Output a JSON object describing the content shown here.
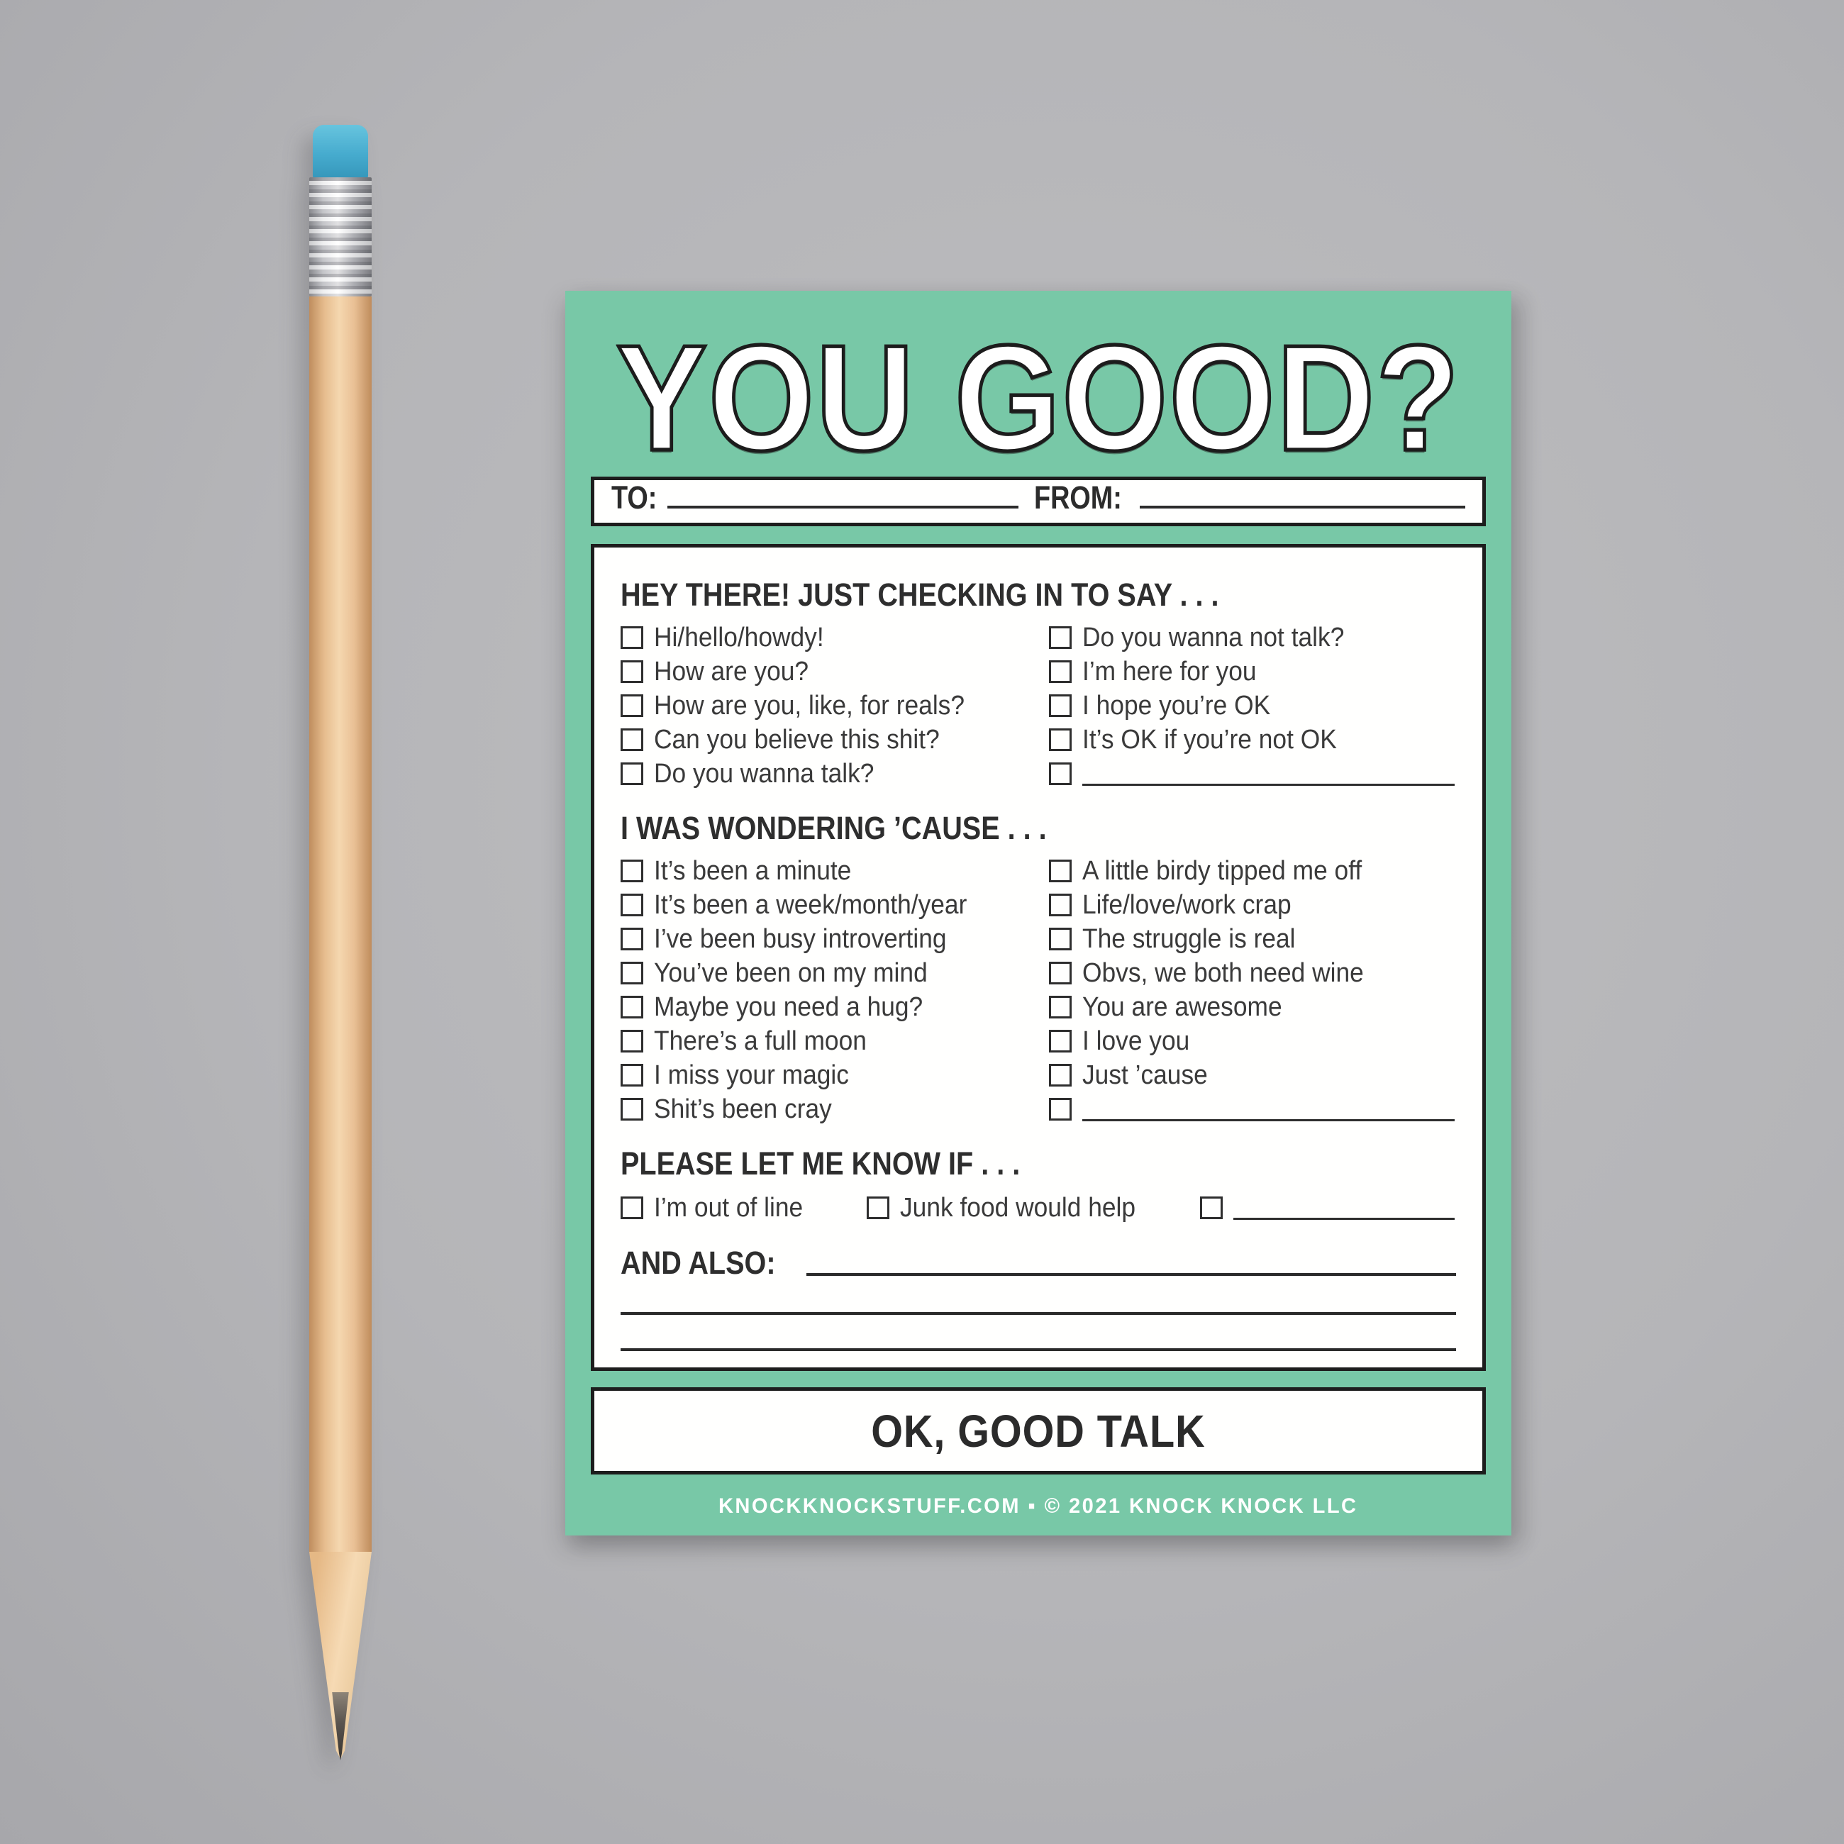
{
  "colors": {
    "background_gray": "#B5B5B8",
    "card_green": "#78C8A7",
    "paper_white": "#FFFFFE",
    "ink_black": "#1D1D1D",
    "text_gray": "#3A3A3A",
    "eraser_blue": "#46ABCE",
    "ferrule_silver": "#D9DADD",
    "pencil_wood": "#E6BC8D",
    "graphite": "#37332F"
  },
  "card": {
    "title": "YOU GOOD?",
    "to_label": "TO:",
    "from_label": "FROM:",
    "sections": [
      {
        "header": "HEY THERE! JUST CHECKING IN TO SAY . . .",
        "left": [
          "Hi/hello/howdy!",
          "How are you?",
          "How are you, like, for reals?",
          "Can you believe this shit?",
          "Do you wanna talk?"
        ],
        "right": [
          "Do you wanna not talk?",
          "I’m here for you",
          "I hope you’re OK",
          "It’s OK if you’re not OK"
        ]
      },
      {
        "header": "I WAS WONDERING ’CAUSE . . .",
        "left": [
          "It’s been a minute",
          "It’s been a week/month/year",
          "I’ve been busy introverting",
          "You’ve been on my mind",
          "Maybe you need a hug?",
          "There’s a full moon",
          "I miss your magic",
          "Shit’s been cray"
        ],
        "right": [
          "A little birdy tipped me off",
          "Life/love/work crap",
          "The struggle is real",
          "Obvs, we both need wine",
          "You are awesome",
          "I love you",
          "Just ’cause"
        ]
      },
      {
        "header": "PLEASE LET ME KNOW IF . . .",
        "items": [
          "I’m out of line",
          "Junk food would help"
        ]
      }
    ],
    "and_also_label": "AND ALSO:",
    "ok_box_label": "OK, GOOD TALK",
    "footer": "KNOCKKNOCKSTUFF.COM ▪ © 2021 KNOCK KNOCK LLC"
  }
}
